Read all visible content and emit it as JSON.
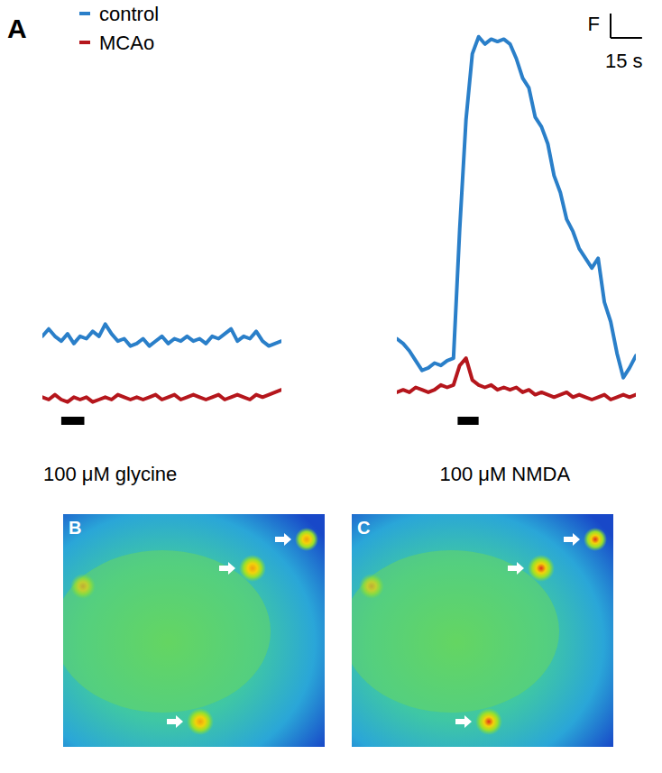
{
  "figure": {
    "panel_label": "A"
  },
  "chart_data": [
    {
      "type": "line",
      "legend": "top-left",
      "tick_labels": false,
      "xlim": [
        0,
        114
      ],
      "ylim": [
        0,
        17
      ],
      "x": [
        0,
        3,
        6,
        9,
        12,
        15,
        18,
        21,
        24,
        27,
        30,
        33,
        36,
        39,
        42,
        45,
        48,
        51,
        54,
        57,
        60,
        63,
        66,
        69,
        72,
        75,
        78,
        81,
        84,
        87,
        90,
        93,
        96,
        99,
        102,
        105,
        108,
        111,
        114
      ],
      "series": [
        {
          "name": "control",
          "color": "#2a7fc9",
          "values": [
            3.6,
            3.9,
            3.6,
            3.4,
            3.7,
            3.3,
            3.6,
            3.5,
            3.8,
            3.6,
            4.1,
            3.7,
            3.4,
            3.5,
            3.2,
            3.3,
            3.5,
            3.2,
            3.4,
            3.6,
            3.3,
            3.5,
            3.4,
            3.6,
            3.4,
            3.5,
            3.3,
            3.6,
            3.5,
            3.7,
            3.9,
            3.4,
            3.6,
            3.5,
            3.8,
            3.4,
            3.2,
            3.3,
            3.4
          ]
        },
        {
          "name": "MCAo",
          "color": "#b5161c",
          "values": [
            1.1,
            1.0,
            1.2,
            1.0,
            0.9,
            1.1,
            1.0,
            1.1,
            0.9,
            1.0,
            1.1,
            1.0,
            1.2,
            1.1,
            1.0,
            1.1,
            1.0,
            1.1,
            1.2,
            1.0,
            1.1,
            1.2,
            1.0,
            1.1,
            1.2,
            1.1,
            1.0,
            1.1,
            1.2,
            1.0,
            1.1,
            1.2,
            1.1,
            1.0,
            1.2,
            1.1,
            1.2,
            1.3,
            1.4
          ]
        }
      ],
      "stimulus": [
        9,
        20
      ],
      "annotation": "100 μM glycine"
    },
    {
      "type": "line",
      "tick_labels": false,
      "xlim": [
        0,
        114
      ],
      "ylim": [
        0,
        17
      ],
      "x": [
        0,
        3,
        6,
        9,
        12,
        15,
        18,
        21,
        24,
        27,
        30,
        33,
        36,
        39,
        42,
        45,
        48,
        51,
        54,
        57,
        60,
        63,
        66,
        69,
        72,
        75,
        78,
        81,
        84,
        87,
        90,
        93,
        96,
        99,
        102,
        105,
        108,
        111,
        114
      ],
      "series": [
        {
          "name": "control",
          "color": "#2a7fc9",
          "values": [
            3.5,
            3.3,
            3.0,
            2.6,
            2.2,
            2.3,
            2.5,
            2.4,
            2.6,
            2.7,
            8.0,
            12.5,
            15.2,
            15.9,
            15.6,
            15.8,
            15.7,
            15.8,
            15.6,
            15.0,
            14.2,
            13.8,
            12.6,
            12.2,
            11.5,
            10.2,
            9.5,
            8.4,
            7.9,
            7.2,
            6.8,
            6.4,
            6.8,
            5.0,
            4.2,
            2.9,
            1.9,
            2.3,
            2.8
          ]
        },
        {
          "name": "MCAo",
          "color": "#b5161c",
          "values": [
            1.3,
            1.4,
            1.3,
            1.5,
            1.4,
            1.3,
            1.4,
            1.6,
            1.5,
            1.6,
            2.4,
            2.7,
            1.8,
            1.6,
            1.5,
            1.6,
            1.4,
            1.5,
            1.4,
            1.5,
            1.3,
            1.4,
            1.2,
            1.3,
            1.2,
            1.1,
            1.2,
            1.3,
            1.1,
            1.2,
            1.1,
            1.0,
            1.1,
            1.2,
            1.0,
            1.1,
            1.2,
            1.1,
            1.2
          ]
        }
      ],
      "stimulus": [
        29,
        39
      ],
      "annotation": "100 μM NMDA",
      "scale_bar": {
        "x": 15,
        "x_label": "15 s",
        "y": 1,
        "y_label": "F"
      }
    }
  ],
  "images": [
    {
      "label": "B"
    },
    {
      "label": "C"
    }
  ]
}
